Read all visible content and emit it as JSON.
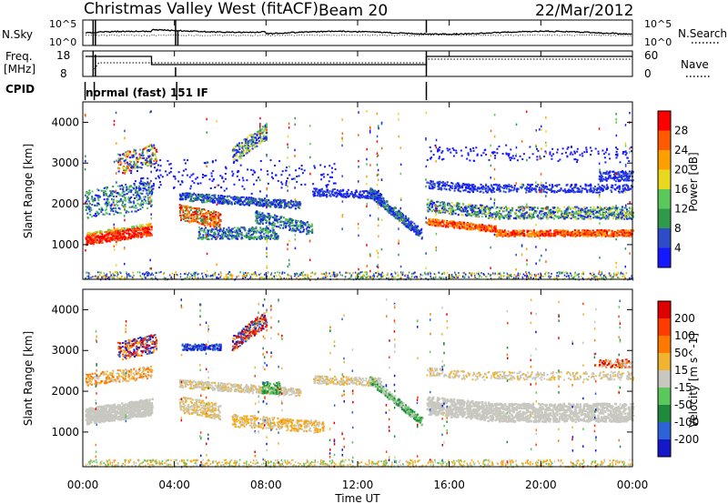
{
  "header": {
    "station": "Christmas Valley West (fitACF)",
    "beam": "Beam 20",
    "date": "22/Mar/2012",
    "cpid_label": "CPID",
    "cpid_text": "normal (fast) 151 IF"
  },
  "sky_panel": {
    "left_label": "N.Sky",
    "left_ticks": [
      "10^5",
      "10^0"
    ],
    "right_label": "N.Search",
    "right_ticks": [
      "10^5",
      "10^0"
    ]
  },
  "freq_panel": {
    "left_label_1": "Freq.",
    "left_label_2": "[MHz]",
    "left_ticks": [
      "18",
      "8"
    ],
    "right_label": "Nave",
    "right_ticks": [
      "60",
      "0"
    ]
  },
  "chart_data": [
    {
      "type": "heatmap",
      "quantity": "Power",
      "ylabel": "Slant Range [km]",
      "xlabel": "",
      "y_ticks": [
        "4000",
        "3000",
        "2000",
        "1000"
      ],
      "colorbar": {
        "label": "Power [dB]",
        "ticks": [
          "28",
          "24",
          "20",
          "16",
          "12",
          "8",
          "4"
        ],
        "colors": [
          "#1418ff",
          "#2c4cc8",
          "#2f9a4c",
          "#5ac85a",
          "#e8d820",
          "#ffa000",
          "#ff5a00",
          "#ff0000"
        ]
      }
    },
    {
      "type": "heatmap",
      "quantity": "Velocity",
      "ylabel": "Slant Range [km]",
      "xlabel": "Time UT",
      "x_ticks": [
        "00:00",
        "04:00",
        "08:00",
        "12:00",
        "16:00",
        "20:00",
        "00:00"
      ],
      "y_ticks": [
        "4000",
        "3000",
        "2000",
        "1000"
      ],
      "colorbar": {
        "label": "Velocity [m s^-1]",
        "ticks": [
          "200",
          "100",
          "50",
          "15",
          "-15",
          "-50",
          "-100",
          "-200"
        ],
        "colors": [
          "#1418c8",
          "#2c64d8",
          "#1f8a3c",
          "#5ac85a",
          "#c8c8c0",
          "#f0b430",
          "#ff7800",
          "#ff3c00",
          "#e00000"
        ]
      }
    }
  ]
}
